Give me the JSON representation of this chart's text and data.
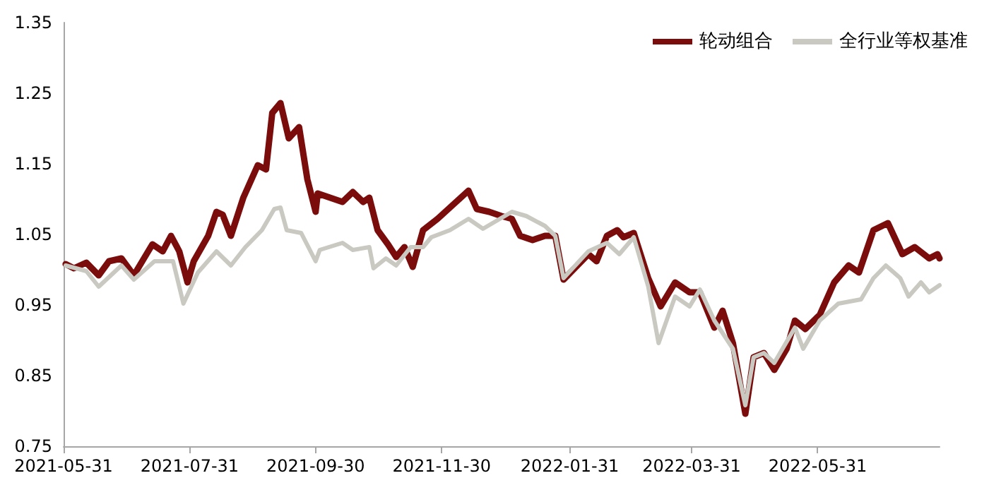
{
  "chart_data": {
    "type": "line",
    "xlim": [
      "2021-05-31",
      "2022-07-29"
    ],
    "xticks": [
      "2021-05-31",
      "2021-07-31",
      "2021-09-30",
      "2021-11-30",
      "2022-01-31",
      "2022-03-31",
      "2022-05-31"
    ],
    "ylim": [
      0.75,
      1.35
    ],
    "yticks": [
      0.75,
      0.85,
      0.95,
      1.05,
      1.15,
      1.25,
      1.35
    ],
    "grid": false,
    "legend": "top right",
    "marker": "none",
    "line_style": "solid",
    "series": [
      {
        "name": "轮动组合",
        "color": "#7b0c0c",
        "x": [
          "2021-06-01",
          "2021-06-05",
          "2021-06-11",
          "2021-06-17",
          "2021-06-22",
          "2021-06-28",
          "2021-07-04",
          "2021-07-13",
          "2021-07-18",
          "2021-07-22",
          "2021-07-26",
          "2021-07-30",
          "2021-08-02",
          "2021-08-09",
          "2021-08-13",
          "2021-08-16",
          "2021-08-20",
          "2021-08-26",
          "2021-09-02",
          "2021-09-06",
          "2021-09-09",
          "2021-09-13",
          "2021-09-17",
          "2021-09-22",
          "2021-09-26",
          "2021-09-30",
          "2021-10-01",
          "2021-10-13",
          "2021-10-18",
          "2021-10-23",
          "2021-10-26",
          "2021-10-30",
          "2021-11-04",
          "2021-11-08",
          "2021-11-12",
          "2021-11-16",
          "2021-11-21",
          "2021-11-28",
          "2021-12-04",
          "2021-12-13",
          "2021-12-17",
          "2021-12-23",
          "2021-12-29",
          "2022-01-03",
          "2022-01-07",
          "2022-01-13",
          "2022-01-19",
          "2022-01-24",
          "2022-01-28",
          "2022-02-09",
          "2022-02-13",
          "2022-02-18",
          "2022-02-23",
          "2022-02-26",
          "2022-03-03",
          "2022-03-10",
          "2022-03-16",
          "2022-03-23",
          "2022-03-30",
          "2022-04-04",
          "2022-04-11",
          "2022-04-15",
          "2022-04-20",
          "2022-04-26",
          "2022-04-30",
          "2022-05-05",
          "2022-05-10",
          "2022-05-16",
          "2022-05-20",
          "2022-05-25",
          "2022-06-01",
          "2022-06-08",
          "2022-06-15",
          "2022-06-20",
          "2022-06-27",
          "2022-07-04",
          "2022-07-11",
          "2022-07-17",
          "2022-07-24",
          "2022-07-28",
          "2022-07-29"
        ],
        "values": [
          1.008,
          1.002,
          1.01,
          0.992,
          1.012,
          1.016,
          0.992,
          1.036,
          1.026,
          1.048,
          1.026,
          0.982,
          1.012,
          1.048,
          1.082,
          1.078,
          1.048,
          1.102,
          1.148,
          1.142,
          1.222,
          1.236,
          1.186,
          1.202,
          1.128,
          1.082,
          1.108,
          1.096,
          1.11,
          1.096,
          1.102,
          1.056,
          1.036,
          1.018,
          1.032,
          1.004,
          1.056,
          1.072,
          1.088,
          1.112,
          1.086,
          1.082,
          1.076,
          1.072,
          1.048,
          1.042,
          1.048,
          1.048,
          0.986,
          1.022,
          1.012,
          1.048,
          1.056,
          1.046,
          1.052,
          0.988,
          0.948,
          0.982,
          0.968,
          0.968,
          0.918,
          0.942,
          0.896,
          0.796,
          0.876,
          0.882,
          0.858,
          0.888,
          0.928,
          0.916,
          0.936,
          0.982,
          1.006,
          0.996,
          1.056,
          1.066,
          1.022,
          1.032,
          1.016,
          1.022,
          1.016
        ]
      },
      {
        "name": "全行业等权基准",
        "color": "#c9c9c1",
        "x": [
          "2021-06-01",
          "2021-06-11",
          "2021-06-17",
          "2021-06-28",
          "2021-07-04",
          "2021-07-14",
          "2021-07-23",
          "2021-07-28",
          "2021-08-04",
          "2021-08-13",
          "2021-08-20",
          "2021-08-27",
          "2021-09-04",
          "2021-09-10",
          "2021-09-13",
          "2021-09-16",
          "2021-09-23",
          "2021-09-30",
          "2021-10-02",
          "2021-10-13",
          "2021-10-18",
          "2021-10-26",
          "2021-10-28",
          "2021-11-03",
          "2021-11-08",
          "2021-11-15",
          "2021-11-21",
          "2021-11-25",
          "2021-12-04",
          "2021-12-13",
          "2021-12-20",
          "2022-01-03",
          "2022-01-10",
          "2022-01-19",
          "2022-01-24",
          "2022-01-28",
          "2022-02-09",
          "2022-02-18",
          "2022-02-24",
          "2022-03-03",
          "2022-03-10",
          "2022-03-15",
          "2022-03-23",
          "2022-03-30",
          "2022-04-04",
          "2022-04-11",
          "2022-04-20",
          "2022-04-26",
          "2022-04-30",
          "2022-05-05",
          "2022-05-10",
          "2022-05-16",
          "2022-05-20",
          "2022-05-24",
          "2022-06-01",
          "2022-06-10",
          "2022-06-21",
          "2022-06-27",
          "2022-07-03",
          "2022-07-10",
          "2022-07-14",
          "2022-07-20",
          "2022-07-24",
          "2022-07-29"
        ],
        "values": [
          1.006,
          0.998,
          0.976,
          1.006,
          0.986,
          1.012,
          1.012,
          0.952,
          0.996,
          1.026,
          1.006,
          1.032,
          1.056,
          1.086,
          1.088,
          1.056,
          1.052,
          1.012,
          1.028,
          1.038,
          1.028,
          1.032,
          1.002,
          1.016,
          1.006,
          1.032,
          1.032,
          1.046,
          1.056,
          1.072,
          1.058,
          1.082,
          1.076,
          1.062,
          1.048,
          0.988,
          1.026,
          1.038,
          1.022,
          1.046,
          0.976,
          0.896,
          0.962,
          0.948,
          0.972,
          0.928,
          0.888,
          0.808,
          0.876,
          0.882,
          0.868,
          0.898,
          0.918,
          0.888,
          0.928,
          0.952,
          0.958,
          0.988,
          1.006,
          0.988,
          0.962,
          0.982,
          0.968,
          0.978
        ]
      }
    ]
  }
}
